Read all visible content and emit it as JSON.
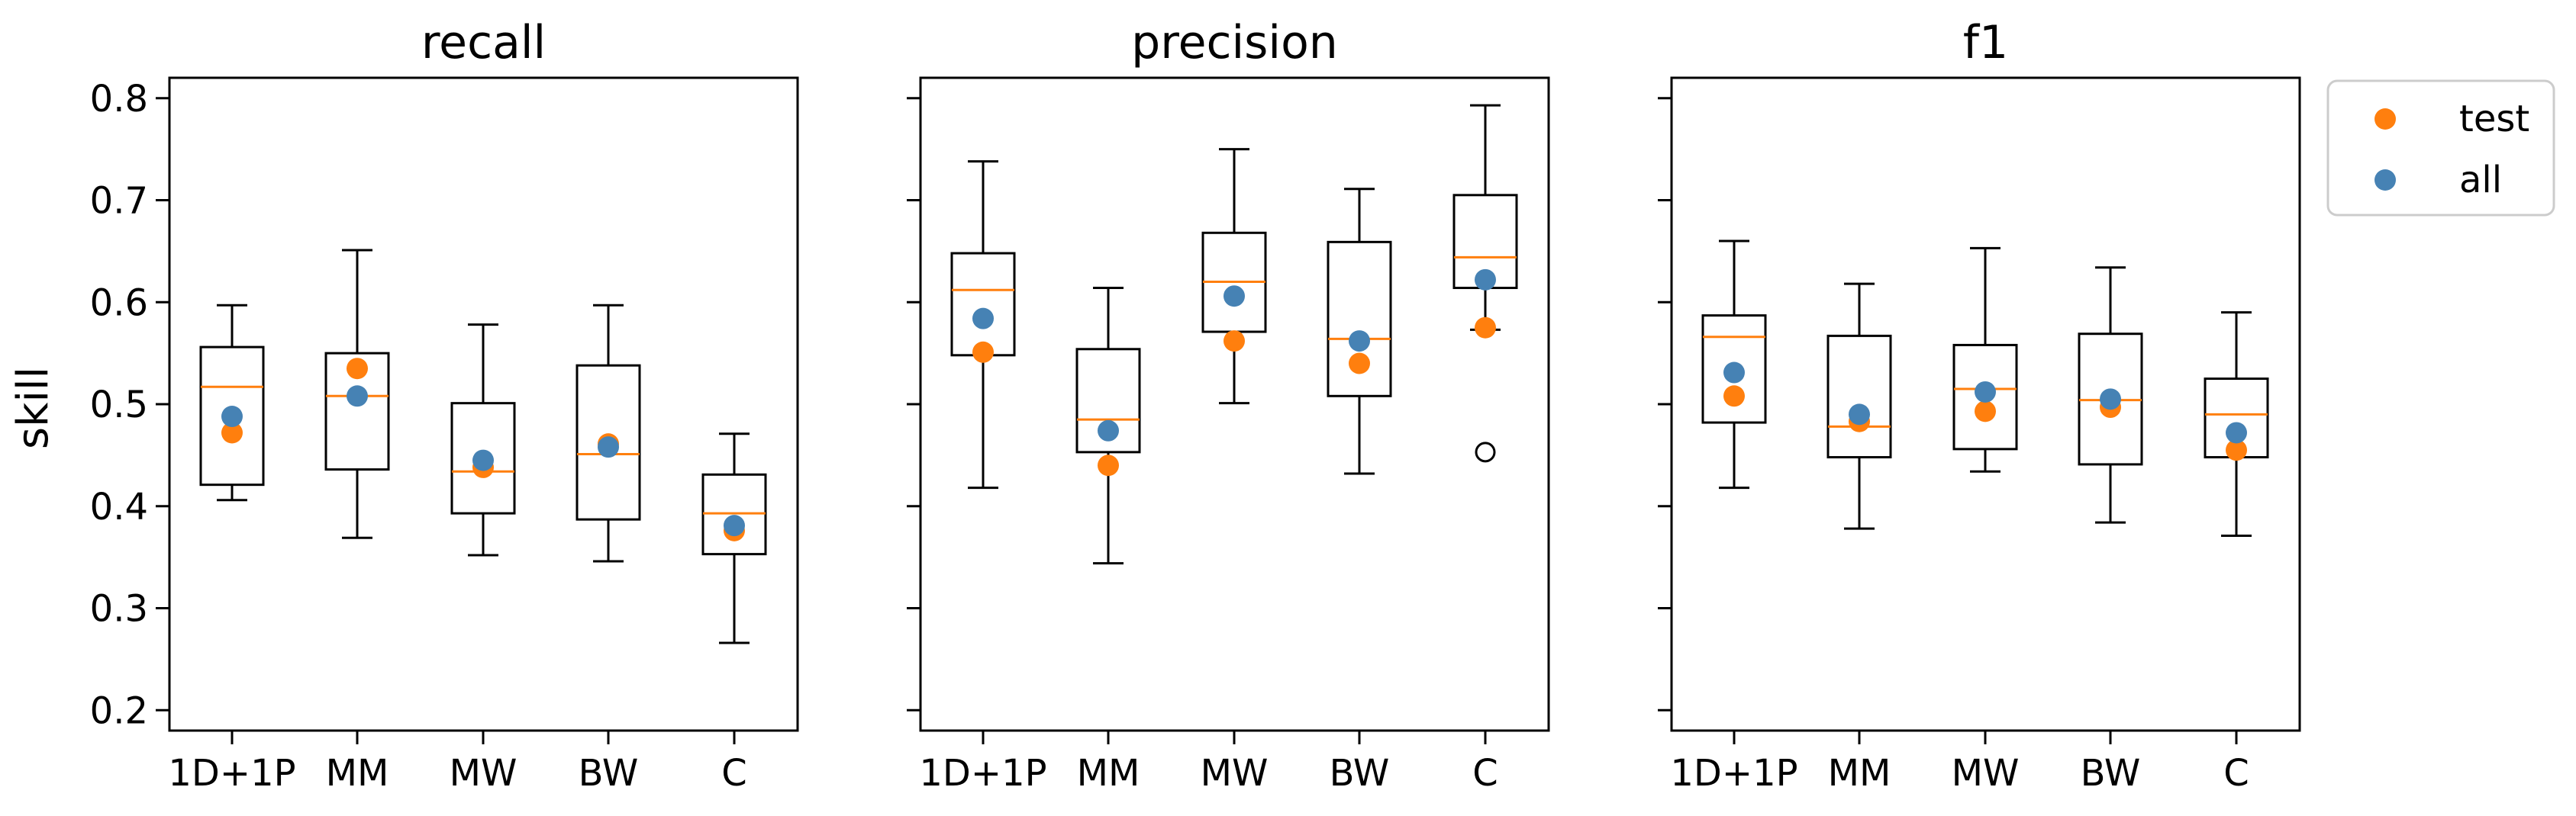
{
  "chart_data": [
    {
      "type": "box",
      "title": "recall",
      "ylabel": "skill",
      "categories": [
        "1D+1P",
        "MM",
        "MW",
        "BW",
        "C"
      ],
      "ylim": [
        0.18,
        0.82
      ],
      "yticks": [
        "0.2",
        "0.3",
        "0.4",
        "0.5",
        "0.6",
        "0.7",
        "0.8"
      ],
      "boxes": [
        {
          "whisker_low": 0.406,
          "q1": 0.421,
          "median": 0.517,
          "q3": 0.556,
          "whisker_high": 0.597,
          "outliers": []
        },
        {
          "whisker_low": 0.369,
          "q1": 0.436,
          "median": 0.508,
          "q3": 0.55,
          "whisker_high": 0.651,
          "outliers": []
        },
        {
          "whisker_low": 0.352,
          "q1": 0.393,
          "median": 0.434,
          "q3": 0.501,
          "whisker_high": 0.578,
          "outliers": []
        },
        {
          "whisker_low": 0.346,
          "q1": 0.387,
          "median": 0.451,
          "q3": 0.538,
          "whisker_high": 0.597,
          "outliers": []
        },
        {
          "whisker_low": 0.266,
          "q1": 0.353,
          "median": 0.393,
          "q3": 0.431,
          "whisker_high": 0.471,
          "outliers": []
        }
      ],
      "series": [
        {
          "name": "test",
          "color": "#ff7f0e",
          "values": [
            0.472,
            0.535,
            0.438,
            0.461,
            0.376
          ]
        },
        {
          "name": "all",
          "color": "#4682b4",
          "values": [
            0.488,
            0.508,
            0.445,
            0.458,
            0.381
          ]
        }
      ]
    },
    {
      "type": "box",
      "title": "precision",
      "categories": [
        "1D+1P",
        "MM",
        "MW",
        "BW",
        "C"
      ],
      "ylim": [
        0.18,
        0.82
      ],
      "boxes": [
        {
          "whisker_low": 0.418,
          "q1": 0.548,
          "median": 0.612,
          "q3": 0.648,
          "whisker_high": 0.738,
          "outliers": []
        },
        {
          "whisker_low": 0.344,
          "q1": 0.453,
          "median": 0.485,
          "q3": 0.554,
          "whisker_high": 0.614,
          "outliers": []
        },
        {
          "whisker_low": 0.501,
          "q1": 0.571,
          "median": 0.62,
          "q3": 0.668,
          "whisker_high": 0.75,
          "outliers": []
        },
        {
          "whisker_low": 0.432,
          "q1": 0.508,
          "median": 0.564,
          "q3": 0.659,
          "whisker_high": 0.711,
          "outliers": []
        },
        {
          "whisker_low": 0.573,
          "q1": 0.614,
          "median": 0.644,
          "q3": 0.705,
          "whisker_high": 0.793,
          "outliers": [
            0.453
          ]
        }
      ],
      "series": [
        {
          "name": "test",
          "color": "#ff7f0e",
          "values": [
            0.551,
            0.44,
            0.562,
            0.54,
            0.575
          ]
        },
        {
          "name": "all",
          "color": "#4682b4",
          "values": [
            0.584,
            0.474,
            0.606,
            0.562,
            0.622
          ]
        }
      ]
    },
    {
      "type": "box",
      "title": "f1",
      "categories": [
        "1D+1P",
        "MM",
        "MW",
        "BW",
        "C"
      ],
      "ylim": [
        0.18,
        0.82
      ],
      "boxes": [
        {
          "whisker_low": 0.418,
          "q1": 0.482,
          "median": 0.566,
          "q3": 0.587,
          "whisker_high": 0.66,
          "outliers": []
        },
        {
          "whisker_low": 0.378,
          "q1": 0.448,
          "median": 0.478,
          "q3": 0.567,
          "whisker_high": 0.618,
          "outliers": []
        },
        {
          "whisker_low": 0.434,
          "q1": 0.456,
          "median": 0.515,
          "q3": 0.558,
          "whisker_high": 0.653,
          "outliers": []
        },
        {
          "whisker_low": 0.384,
          "q1": 0.441,
          "median": 0.504,
          "q3": 0.569,
          "whisker_high": 0.634,
          "outliers": []
        },
        {
          "whisker_low": 0.371,
          "q1": 0.448,
          "median": 0.49,
          "q3": 0.525,
          "whisker_high": 0.59,
          "outliers": []
        }
      ],
      "series": [
        {
          "name": "test",
          "color": "#ff7f0e",
          "values": [
            0.508,
            0.483,
            0.493,
            0.497,
            0.455
          ]
        },
        {
          "name": "all",
          "color": "#4682b4",
          "values": [
            0.531,
            0.49,
            0.512,
            0.505,
            0.472
          ]
        }
      ]
    }
  ],
  "legend": {
    "placement": "outside-right-top",
    "items": [
      {
        "label": "test",
        "color": "#ff7f0e"
      },
      {
        "label": "all",
        "color": "#4682b4"
      }
    ]
  }
}
